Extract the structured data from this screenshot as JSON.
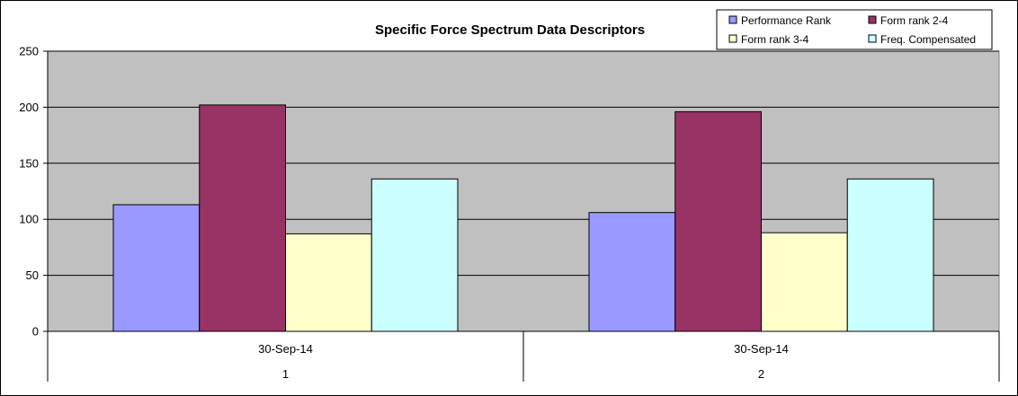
{
  "chart_data": {
    "type": "bar",
    "title": "Specific Force Spectrum Data Descriptors",
    "categories": [
      {
        "date": "30-Sep-14",
        "index": "1"
      },
      {
        "date": "30-Sep-14",
        "index": "2"
      }
    ],
    "series": [
      {
        "name": "Performance Rank",
        "color": "#9999ff",
        "values": [
          113,
          106
        ]
      },
      {
        "name": "Form rank 2-4",
        "color": "#993366",
        "values": [
          202,
          196
        ]
      },
      {
        "name": "Form rank 3-4",
        "color": "#ffffcc",
        "values": [
          87,
          88
        ]
      },
      {
        "name": "Freq. Compensated",
        "color": "#ccffff",
        "values": [
          136,
          136
        ]
      }
    ],
    "y_ticks": [
      "0",
      "50",
      "100",
      "150",
      "200",
      "250"
    ],
    "ylim": [
      0,
      250
    ],
    "grid": true,
    "plot_background": "#c0c0c0",
    "legend_position": "top-right"
  }
}
